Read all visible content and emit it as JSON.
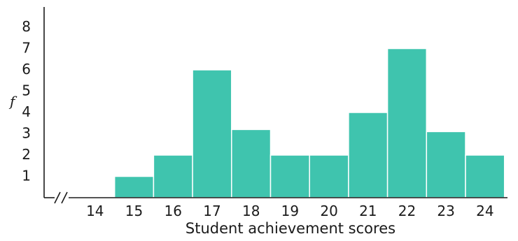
{
  "chart_data": {
    "type": "bar",
    "title": "",
    "xlabel": "Student achievement scores",
    "ylabel": "f",
    "categories": [
      "14",
      "15",
      "16",
      "17",
      "18",
      "19",
      "20",
      "21",
      "22",
      "23",
      "24"
    ],
    "values": [
      0,
      1,
      2,
      6,
      3.2,
      2,
      2,
      4,
      7,
      3.1,
      2
    ],
    "y_ticks": [
      "1",
      "2",
      "3",
      "4",
      "5",
      "6",
      "7",
      "8"
    ],
    "ylim": [
      0,
      8
    ],
    "x_axis_break": true,
    "grid": false,
    "legend": "none",
    "bar_color": "#3fc4ae"
  }
}
